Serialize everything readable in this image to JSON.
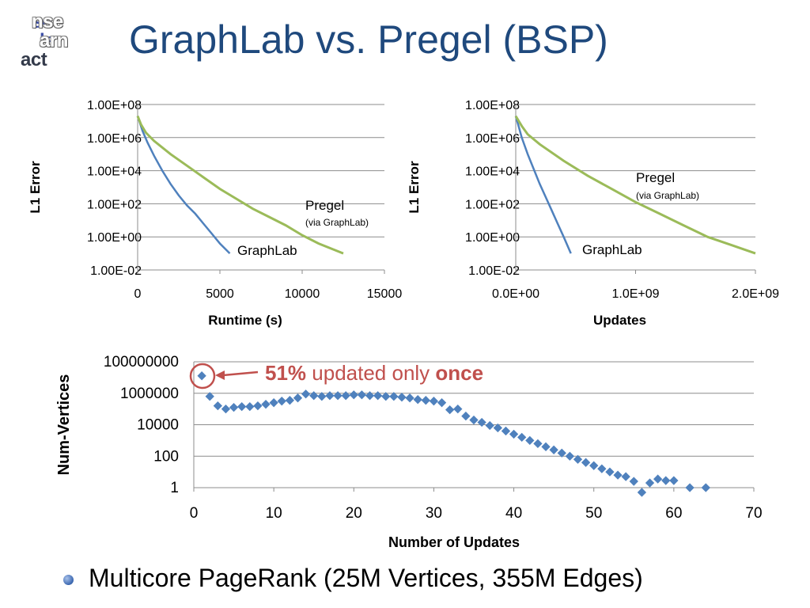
{
  "logo": {
    "line1a": "se",
    "line1b": "nse",
    "line2a": "le",
    "line2b": "arn",
    "line3": "act"
  },
  "title": "GraphLab vs. Pregel (BSP)",
  "bullet": "Multicore PageRank (25M Vertices, 355M Edges)",
  "colors": {
    "graphlab": "#4f81bd",
    "pregel": "#9bbb59",
    "annotation": "#c0504d",
    "scatter": "#4f81bd"
  },
  "chart_data": [
    {
      "type": "line",
      "xlabel": "Runtime (s)",
      "ylabel": "L1 Error",
      "ytick_labels": [
        "1.00E+08",
        "1.00E+06",
        "1.00E+04",
        "1.00E+02",
        "1.00E+00",
        "1.00E-02"
      ],
      "xtick_labels": [
        "0",
        "5000",
        "10000",
        "15000"
      ],
      "xlim": [
        0,
        15000
      ],
      "ylim_log10": [
        -2,
        8
      ],
      "grid": true,
      "series": [
        {
          "name": "GraphLab",
          "x": [
            0,
            100,
            300,
            600,
            1000,
            1500,
            2000,
            2500,
            3000,
            3500,
            4000,
            4500,
            5000,
            5600
          ],
          "y_log10": [
            7.3,
            7.0,
            6.4,
            5.7,
            4.9,
            4.0,
            3.2,
            2.5,
            1.9,
            1.4,
            0.8,
            0.2,
            -0.4,
            -1.0
          ]
        },
        {
          "name": "Pregel",
          "sublabel": "(via GraphLab)",
          "x": [
            0,
            200,
            500,
            1000,
            2000,
            3000,
            4000,
            5000,
            6000,
            7000,
            8000,
            9000,
            10000,
            11000,
            12500
          ],
          "y_log10": [
            7.3,
            6.8,
            6.3,
            5.8,
            5.0,
            4.3,
            3.6,
            2.9,
            2.3,
            1.7,
            1.2,
            0.7,
            0.1,
            -0.4,
            -1.0
          ]
        }
      ]
    },
    {
      "type": "line",
      "xlabel": "Updates",
      "ylabel": "L1 Error",
      "ytick_labels": [
        "1.00E+08",
        "1.00E+06",
        "1.00E+04",
        "1.00E+02",
        "1.00E+00",
        "1.00E-02"
      ],
      "xtick_labels": [
        "0.0E+00",
        "1.0E+09",
        "2.0E+09"
      ],
      "xlim": [
        0,
        2000000000
      ],
      "ylim_log10": [
        -2,
        8
      ],
      "grid": true,
      "series": [
        {
          "name": "GraphLab",
          "x": [
            0,
            20000000,
            50000000,
            100000000,
            150000000,
            200000000,
            250000000,
            300000000,
            350000000,
            400000000,
            460000000
          ],
          "y_log10": [
            7.3,
            6.8,
            6.0,
            5.0,
            4.1,
            3.2,
            2.4,
            1.6,
            0.8,
            0.0,
            -1.0
          ]
        },
        {
          "name": "Pregel",
          "sublabel": "(via GraphLab)",
          "x": [
            0,
            50000000,
            100000000,
            200000000,
            400000000,
            600000000,
            800000000,
            1000000000,
            1200000000,
            1400000000,
            1600000000,
            1800000000,
            2000000000
          ],
          "y_log10": [
            7.3,
            6.7,
            6.2,
            5.6,
            4.6,
            3.7,
            2.9,
            2.1,
            1.4,
            0.7,
            0.0,
            -0.5,
            -1.0
          ]
        }
      ]
    },
    {
      "type": "scatter",
      "xlabel": "Number of Updates",
      "ylabel": "Num-Vertices",
      "ytick_labels": [
        "100000000",
        "1000000",
        "10000",
        "100",
        "1"
      ],
      "xtick_labels": [
        "0",
        "10",
        "20",
        "30",
        "40",
        "50",
        "60",
        "70"
      ],
      "xlim": [
        0,
        70
      ],
      "ylim_log10": [
        0,
        8
      ],
      "grid": true,
      "annotation": {
        "bold1": "51%",
        "mid": " updated only ",
        "bold2": "once"
      },
      "series": [
        {
          "name": "Num-Vertices",
          "x": [
            1,
            2,
            3,
            4,
            5,
            6,
            7,
            8,
            9,
            10,
            11,
            12,
            13,
            14,
            15,
            16,
            17,
            18,
            19,
            20,
            21,
            22,
            23,
            24,
            25,
            26,
            27,
            28,
            29,
            30,
            31,
            32,
            33,
            34,
            35,
            36,
            37,
            38,
            39,
            40,
            41,
            42,
            43,
            44,
            45,
            46,
            47,
            48,
            49,
            50,
            51,
            52,
            53,
            54,
            55,
            56,
            57,
            58,
            59,
            60,
            62,
            64
          ],
          "y_log10": [
            7.11,
            5.8,
            5.2,
            5.0,
            5.1,
            5.15,
            5.15,
            5.2,
            5.3,
            5.4,
            5.5,
            5.55,
            5.7,
            5.95,
            5.85,
            5.8,
            5.85,
            5.85,
            5.85,
            5.9,
            5.9,
            5.85,
            5.85,
            5.8,
            5.8,
            5.75,
            5.7,
            5.6,
            5.55,
            5.5,
            5.4,
            4.95,
            5.0,
            4.55,
            4.3,
            4.15,
            3.95,
            3.8,
            3.6,
            3.4,
            3.2,
            3.0,
            2.8,
            2.6,
            2.4,
            2.2,
            2.0,
            1.8,
            1.6,
            1.4,
            1.2,
            1.0,
            0.8,
            0.7,
            0.4,
            -0.3,
            0.3,
            0.55,
            0.45,
            0.45,
            0.0,
            0.0
          ]
        }
      ]
    }
  ]
}
